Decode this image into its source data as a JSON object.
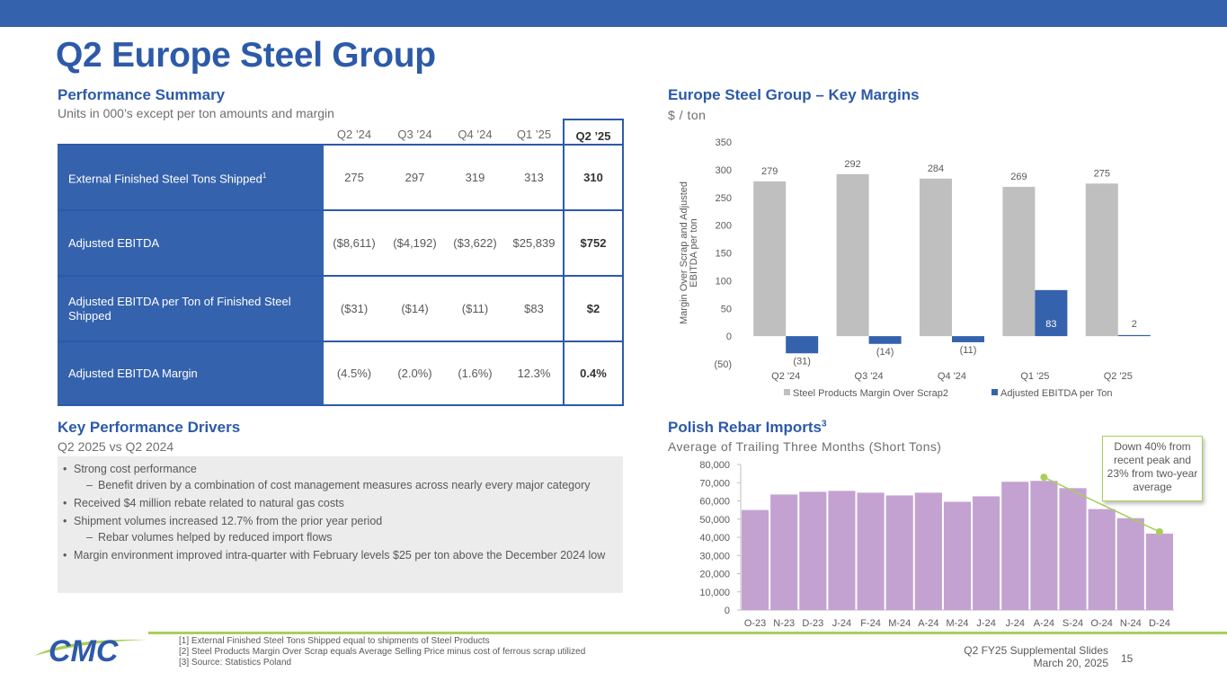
{
  "title": "Q2 Europe Steel Group",
  "performance": {
    "heading": "Performance Summary",
    "subheading": "Units in 000’s except per ton amounts and margin",
    "columns": [
      "Q2 ’24",
      "Q3 ’24",
      "Q4 ’24",
      "Q1 ’25",
      "Q2 ’25"
    ],
    "rows": [
      {
        "label": "External Finished Steel Tons Shipped",
        "footnote": "1",
        "values": [
          "275",
          "297",
          "319",
          "313",
          "310"
        ]
      },
      {
        "label": "Adjusted EBITDA",
        "footnote": "",
        "values": [
          "($8,611)",
          "($4,192)",
          "($3,622)",
          "$25,839",
          "$752"
        ]
      },
      {
        "label": "Adjusted EBITDA per Ton of Finished Steel Shipped",
        "footnote": "",
        "values": [
          "($31)",
          "($14)",
          "($11)",
          "$83",
          "$2"
        ]
      },
      {
        "label": "Adjusted EBITDA Margin",
        "footnote": "",
        "values": [
          "(4.5%)",
          "(2.0%)",
          "(1.6%)",
          "12.3%",
          "0.4%"
        ]
      }
    ]
  },
  "drivers": {
    "heading": "Key Performance Drivers",
    "subheading": "Q2 2025 vs Q2 2024",
    "items": [
      {
        "text": "Strong cost performance",
        "sub": "Benefit driven by a combination of cost management measures across nearly every major category"
      },
      {
        "text": "Received $4 million rebate related to natural gas costs",
        "sub": ""
      },
      {
        "text": "Shipment volumes increased 12.7% from the prior year period",
        "sub": "Rebar volumes helped by reduced import flows"
      },
      {
        "text": "Margin environment improved intra-quarter with February levels $25 per ton above the December 2024 low",
        "sub": ""
      }
    ]
  },
  "margins_panel": {
    "heading": "Europe Steel Group – Key Margins",
    "subheading": "$ / ton"
  },
  "imports_panel": {
    "heading": "Polish Rebar Imports",
    "heading_sup": "3",
    "subheading": "Average of Trailing Three Months (Short Tons)",
    "callout": "Down 40% from recent peak and 23% from two-year average"
  },
  "chart_data": [
    {
      "type": "bar",
      "categories": [
        "Q2 '24",
        "Q3 '24",
        "Q4 '24",
        "Q1 '25",
        "Q2 '25"
      ],
      "series": [
        {
          "name": "Steel Products Margin Over Scrap",
          "footnote": "2",
          "color": "#bfbfbf",
          "values": [
            279,
            292,
            284,
            269,
            275
          ],
          "labels": [
            "279",
            "292",
            "284",
            "269",
            "275"
          ]
        },
        {
          "name": "Adjusted EBITDA per Ton",
          "color": "#3562ad",
          "values": [
            -31,
            -14,
            -11,
            83,
            2
          ],
          "labels": [
            "(31)",
            "(14)",
            "(11)",
            "83",
            "2"
          ]
        }
      ],
      "ylabel": "Margin Over Scrap and Adjusted EBITDA per ton",
      "ylim": [
        -50,
        350
      ],
      "yticks": [
        "(50)",
        "0",
        "50",
        "100",
        "150",
        "200",
        "250",
        "300",
        "350"
      ],
      "legend": "bottom"
    },
    {
      "type": "bar",
      "categories": [
        "O-23",
        "N-23",
        "D-23",
        "J-24",
        "F-24",
        "M-24",
        "A-24",
        "M-24",
        "J-24",
        "J-24",
        "A-24",
        "S-24",
        "O-24",
        "N-24",
        "D-24"
      ],
      "values": [
        55000,
        63500,
        65000,
        65500,
        64500,
        63000,
        64500,
        59500,
        62500,
        70500,
        71000,
        67000,
        55500,
        50500,
        42000
      ],
      "color": "#c3a2d2",
      "trend_line": {
        "from_category_index": 10,
        "to_category_index": 14,
        "color": "#a8cf5a"
      },
      "ylim": [
        0,
        80000
      ],
      "yticks": [
        "0",
        "10,000",
        "20,000",
        "30,000",
        "40,000",
        "50,000",
        "60,000",
        "70,000",
        "80,000"
      ]
    }
  ],
  "footer": {
    "footnotes": [
      "[1]  External Finished Steel Tons Shipped equal to shipments of Steel Products",
      "[2]  Steel Products Margin Over Scrap equals Average Selling Price minus cost of ferrous scrap utilized",
      "[3]  Source: Statistics Poland"
    ],
    "deck": "Q2 FY25 Supplemental Slides",
    "date": "March 20, 2025",
    "page": "15",
    "logo_text": "CMC"
  }
}
